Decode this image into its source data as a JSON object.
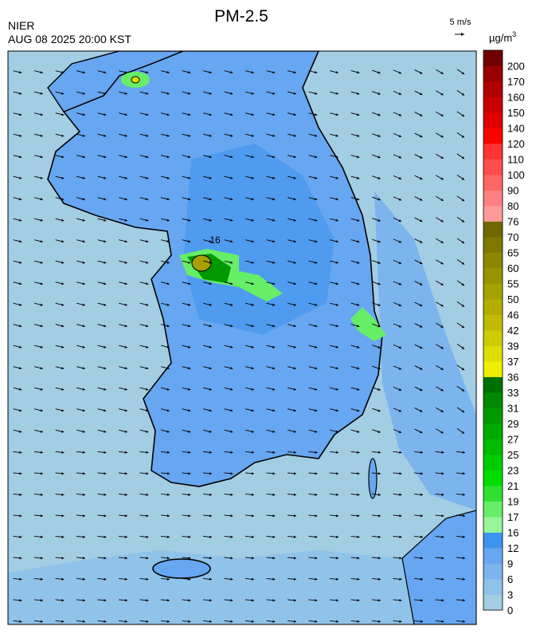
{
  "header": {
    "title": "PM-2.5",
    "source": "NIER",
    "datetime": "AUG 08 2025 20:00 KST",
    "wind_scale": "5 m/s"
  },
  "map": {
    "contour_label": "16"
  },
  "legend": {
    "unit": "µg/m",
    "unit_sup": "3",
    "labels": [
      "0",
      "3",
      "6",
      "9",
      "12",
      "16",
      "17",
      "19",
      "21",
      "23",
      "25",
      "27",
      "29",
      "31",
      "33",
      "36",
      "37",
      "39",
      "42",
      "46",
      "50",
      "55",
      "60",
      "65",
      "70",
      "76",
      "80",
      "90",
      "100",
      "110",
      "120",
      "140",
      "150",
      "160",
      "170",
      "200"
    ],
    "colors": [
      "#a3cde3",
      "#90c3ea",
      "#7cb4ee",
      "#67a6f0",
      "#3d94f0",
      "#9af59a",
      "#66ee66",
      "#30e030",
      "#00dd00",
      "#00cc00",
      "#00bb00",
      "#00aa00",
      "#009900",
      "#008800",
      "#007000",
      "#eeee00",
      "#dddd00",
      "#cccc00",
      "#c0bb00",
      "#b3ad00",
      "#a6a000",
      "#999300",
      "#8c8600",
      "#7f7800",
      "#6f6800",
      "#ff9a9a",
      "#ff8080",
      "#ff6666",
      "#ff4d4d",
      "#ff3333",
      "#ff0000",
      "#e00000",
      "#c80000",
      "#b00000",
      "#980000",
      "#700000"
    ]
  }
}
